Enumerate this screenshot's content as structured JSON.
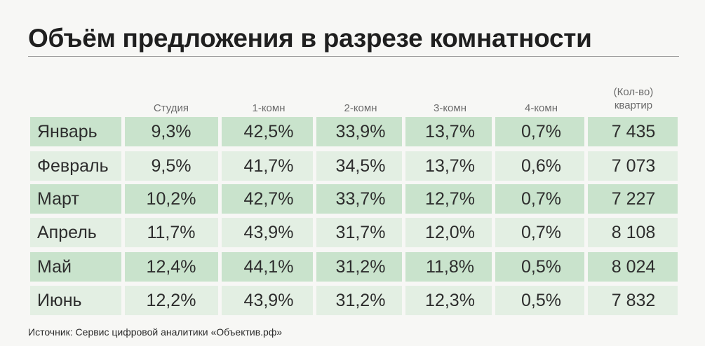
{
  "chart_data": {
    "type": "table",
    "title": "Объём предложения в разрезе комнатности",
    "columns": [
      "Студия",
      "1-комн",
      "2-комн",
      "3-комн",
      "4-комн",
      "(Кол-во) квартир"
    ],
    "count_header_line1": "(Кол-во)",
    "count_header_line2": "квартир",
    "rows": [
      {
        "month": "Январь",
        "values": [
          "9,3%",
          "42,5%",
          "33,9%",
          "13,7%",
          "0,7%",
          "7 435"
        ]
      },
      {
        "month": "Февраль",
        "values": [
          "9,5%",
          "41,7%",
          "34,5%",
          "13,7%",
          "0,6%",
          "7 073"
        ]
      },
      {
        "month": "Март",
        "values": [
          "10,2%",
          "42,7%",
          "33,7%",
          "12,7%",
          "0,7%",
          "7 227"
        ]
      },
      {
        "month": "Апрель",
        "values": [
          "11,7%",
          "43,9%",
          "31,7%",
          "12,0%",
          "0,7%",
          "8 108"
        ]
      },
      {
        "month": "Май",
        "values": [
          "12,4%",
          "44,1%",
          "31,2%",
          "11,8%",
          "0,5%",
          "8 024"
        ]
      },
      {
        "month": "Июнь",
        "values": [
          "12,2%",
          "43,9%",
          "31,2%",
          "12,3%",
          "0,5%",
          "7 832"
        ]
      }
    ],
    "source": "Источник: Сервис цифровой аналитики «Объектив.рф»"
  },
  "colors": {
    "row_dark": "#c9e3cc",
    "row_light": "#e3efe3",
    "background": "#f7f7f5"
  }
}
